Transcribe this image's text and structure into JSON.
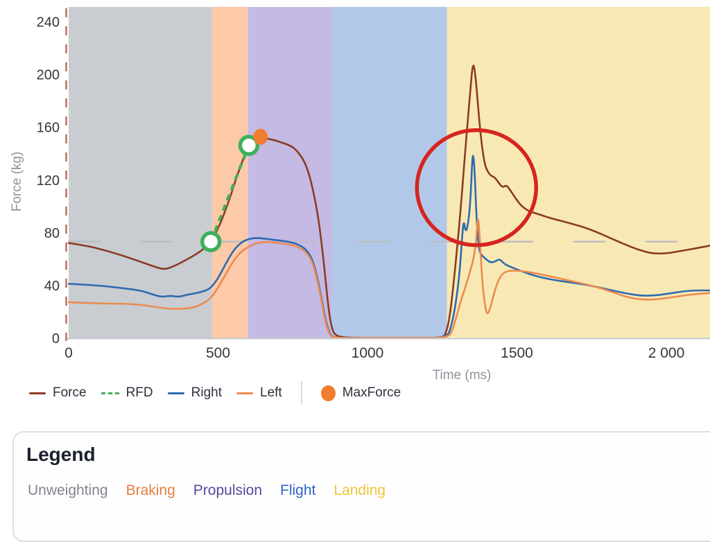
{
  "chart_data": {
    "type": "line",
    "title": "",
    "xlabel": "Time (ms)",
    "ylabel": "Force (kg)",
    "xlim": [
      0,
      2146
    ],
    "ylim": [
      0,
      240
    ],
    "grid": false,
    "x_ticks": [
      {
        "value": 0,
        "label": "0"
      },
      {
        "value": 500,
        "label": "500"
      },
      {
        "value": 1000,
        "label": "1000"
      },
      {
        "value": 1500,
        "label": "1500"
      },
      {
        "value": 2000,
        "label": "2 000"
      }
    ],
    "y_ticks": [
      {
        "value": 0,
        "label": "0"
      },
      {
        "value": 40,
        "label": "40"
      },
      {
        "value": 80,
        "label": "80"
      },
      {
        "value": 120,
        "label": "120"
      },
      {
        "value": 160,
        "label": "160"
      },
      {
        "value": 200,
        "label": "200"
      },
      {
        "value": 240,
        "label": "240"
      }
    ],
    "phases": [
      {
        "name": "Unweighting",
        "t_start": 0,
        "t_end": 480,
        "color": "#c9cdd2"
      },
      {
        "name": "Braking",
        "t_start": 480,
        "t_end": 600,
        "color": "#fccaa8"
      },
      {
        "name": "Propulsion",
        "t_start": 600,
        "t_end": 882,
        "color": "#c5bae3"
      },
      {
        "name": "Flight",
        "t_start": 882,
        "t_end": 1266,
        "color": "#b2c8e8"
      },
      {
        "name": "Landing",
        "t_start": 1266,
        "t_end": 2146,
        "color": "#f8e9b4"
      }
    ],
    "bodyweight_reference_kg": 73,
    "series": [
      {
        "name": "Force",
        "color": "#8a3b24",
        "points": [
          [
            0,
            72
          ],
          [
            60,
            70
          ],
          [
            130,
            66
          ],
          [
            200,
            61
          ],
          [
            250,
            57
          ],
          [
            300,
            53
          ],
          [
            320,
            52
          ],
          [
            350,
            54
          ],
          [
            400,
            60
          ],
          [
            445,
            66
          ],
          [
            476,
            73
          ],
          [
            505,
            85
          ],
          [
            535,
            103
          ],
          [
            565,
            124
          ],
          [
            585,
            136
          ],
          [
            603,
            146
          ],
          [
            620,
            150
          ],
          [
            642,
            152
          ],
          [
            665,
            151
          ],
          [
            690,
            150
          ],
          [
            715,
            148
          ],
          [
            740,
            146
          ],
          [
            760,
            143
          ],
          [
            787,
            135
          ],
          [
            805,
            124
          ],
          [
            820,
            110
          ],
          [
            838,
            88
          ],
          [
            855,
            55
          ],
          [
            868,
            25
          ],
          [
            880,
            7
          ],
          [
            895,
            1
          ],
          [
            950,
            0
          ],
          [
            1050,
            0
          ],
          [
            1150,
            0
          ],
          [
            1250,
            0
          ],
          [
            1262,
            3
          ],
          [
            1275,
            15
          ],
          [
            1290,
            45
          ],
          [
            1305,
            80
          ],
          [
            1318,
            115
          ],
          [
            1330,
            150
          ],
          [
            1342,
            182
          ],
          [
            1353,
            211
          ],
          [
            1362,
            198
          ],
          [
            1372,
            170
          ],
          [
            1382,
            147
          ],
          [
            1392,
            132
          ],
          [
            1400,
            127
          ],
          [
            1412,
            123
          ],
          [
            1425,
            122
          ],
          [
            1438,
            118
          ],
          [
            1452,
            114
          ],
          [
            1465,
            116
          ],
          [
            1478,
            112
          ],
          [
            1495,
            106
          ],
          [
            1515,
            100
          ],
          [
            1540,
            96
          ],
          [
            1570,
            94
          ],
          [
            1610,
            91
          ],
          [
            1660,
            88
          ],
          [
            1710,
            85
          ],
          [
            1760,
            81
          ],
          [
            1810,
            76
          ],
          [
            1860,
            71
          ],
          [
            1905,
            67
          ],
          [
            1950,
            64
          ],
          [
            2000,
            64
          ],
          [
            2050,
            66
          ],
          [
            2100,
            68
          ],
          [
            2146,
            70
          ]
        ]
      },
      {
        "name": "Right",
        "color": "#2f6aae",
        "points": [
          [
            0,
            41
          ],
          [
            90,
            40
          ],
          [
            170,
            38
          ],
          [
            240,
            36
          ],
          [
            280,
            33
          ],
          [
            310,
            31
          ],
          [
            340,
            32
          ],
          [
            370,
            31
          ],
          [
            400,
            33
          ],
          [
            430,
            34
          ],
          [
            460,
            36
          ],
          [
            476,
            38
          ],
          [
            500,
            45
          ],
          [
            525,
            56
          ],
          [
            550,
            66
          ],
          [
            575,
            72
          ],
          [
            600,
            75
          ],
          [
            630,
            76
          ],
          [
            665,
            75
          ],
          [
            700,
            74
          ],
          [
            735,
            73
          ],
          [
            770,
            71
          ],
          [
            800,
            66
          ],
          [
            820,
            57
          ],
          [
            840,
            38
          ],
          [
            858,
            15
          ],
          [
            872,
            4
          ],
          [
            885,
            0
          ],
          [
            950,
            0
          ],
          [
            1050,
            0
          ],
          [
            1150,
            0
          ],
          [
            1265,
            0
          ],
          [
            1280,
            8
          ],
          [
            1295,
            25
          ],
          [
            1308,
            48
          ],
          [
            1316,
            75
          ],
          [
            1322,
            90
          ],
          [
            1328,
            80
          ],
          [
            1336,
            85
          ],
          [
            1345,
            105
          ],
          [
            1352,
            143
          ],
          [
            1358,
            130
          ],
          [
            1365,
            90
          ],
          [
            1372,
            68
          ],
          [
            1380,
            63
          ],
          [
            1395,
            60
          ],
          [
            1412,
            57
          ],
          [
            1428,
            58
          ],
          [
            1442,
            60
          ],
          [
            1458,
            56
          ],
          [
            1478,
            54
          ],
          [
            1510,
            51
          ],
          [
            1560,
            47
          ],
          [
            1620,
            44
          ],
          [
            1680,
            42
          ],
          [
            1740,
            40
          ],
          [
            1800,
            37
          ],
          [
            1860,
            34
          ],
          [
            1910,
            32
          ],
          [
            1960,
            32
          ],
          [
            2020,
            34
          ],
          [
            2080,
            36
          ],
          [
            2146,
            36
          ]
        ]
      },
      {
        "name": "Left",
        "color": "#ec8a4e",
        "points": [
          [
            0,
            27
          ],
          [
            100,
            26
          ],
          [
            180,
            26
          ],
          [
            250,
            25
          ],
          [
            300,
            23
          ],
          [
            340,
            22
          ],
          [
            380,
            22
          ],
          [
            420,
            23
          ],
          [
            450,
            26
          ],
          [
            476,
            30
          ],
          [
            500,
            38
          ],
          [
            525,
            48
          ],
          [
            550,
            58
          ],
          [
            575,
            65
          ],
          [
            600,
            69
          ],
          [
            630,
            72
          ],
          [
            665,
            73
          ],
          [
            700,
            72
          ],
          [
            735,
            71
          ],
          [
            770,
            69
          ],
          [
            800,
            64
          ],
          [
            820,
            55
          ],
          [
            840,
            36
          ],
          [
            858,
            13
          ],
          [
            872,
            3
          ],
          [
            885,
            0
          ],
          [
            950,
            0
          ],
          [
            1050,
            0
          ],
          [
            1150,
            0
          ],
          [
            1270,
            0
          ],
          [
            1285,
            6
          ],
          [
            1300,
            18
          ],
          [
            1315,
            30
          ],
          [
            1330,
            40
          ],
          [
            1343,
            50
          ],
          [
            1355,
            60
          ],
          [
            1363,
            72
          ],
          [
            1370,
            96
          ],
          [
            1377,
            70
          ],
          [
            1385,
            40
          ],
          [
            1393,
            25
          ],
          [
            1400,
            17
          ],
          [
            1412,
            23
          ],
          [
            1428,
            38
          ],
          [
            1445,
            47
          ],
          [
            1465,
            51
          ],
          [
            1510,
            51
          ],
          [
            1565,
            49
          ],
          [
            1625,
            46
          ],
          [
            1685,
            43
          ],
          [
            1745,
            40
          ],
          [
            1805,
            36
          ],
          [
            1865,
            31
          ],
          [
            1915,
            29
          ],
          [
            1965,
            29
          ],
          [
            2025,
            31
          ],
          [
            2085,
            33
          ],
          [
            2146,
            34
          ]
        ]
      }
    ],
    "rfd": {
      "name": "RFD",
      "color": "#47ad5e",
      "points": [
        [
          476,
          73
        ],
        [
          603,
          146
        ]
      ]
    },
    "markers": {
      "max_force": {
        "label": "MaxForce",
        "t": 642,
        "force_kg": 152.5,
        "color": "#f07d2e"
      },
      "rfd_endpoints": [
        {
          "t": 476,
          "force_kg": 73
        },
        {
          "t": 603,
          "force_kg": 146
        }
      ],
      "rfd_endpoint_ring_color": "#3db15b"
    },
    "annotation": {
      "shape": "ellipse",
      "t_center": 1365,
      "force_center_kg": 114,
      "color": "#d6251f"
    },
    "axis_dashed_line_color": "#b05b44",
    "bodyweight_line_color": "#babdc1",
    "baseline_color": "#c6c9ce"
  },
  "series_legend": {
    "items": [
      {
        "label": "Force",
        "color": "#8a3b24",
        "swatch": "line"
      },
      {
        "label": "RFD",
        "color": "#47ad5e",
        "swatch": "dashed-line"
      },
      {
        "label": "Right",
        "color": "#2f6aae",
        "swatch": "line"
      },
      {
        "label": "Left",
        "color": "#ec8a4e",
        "swatch": "line"
      },
      {
        "label": "MaxForce",
        "color": "#f07d2e",
        "swatch": "dot"
      }
    ]
  },
  "legend_card": {
    "title": "Legend",
    "phases": [
      {
        "label": "Unweighting",
        "color": "#80858e"
      },
      {
        "label": "Braking",
        "color": "#e37d3e"
      },
      {
        "label": "Propulsion",
        "color": "#55489c"
      },
      {
        "label": "Flight",
        "color": "#2f63c5"
      },
      {
        "label": "Landing",
        "color": "#eec43c"
      }
    ]
  }
}
